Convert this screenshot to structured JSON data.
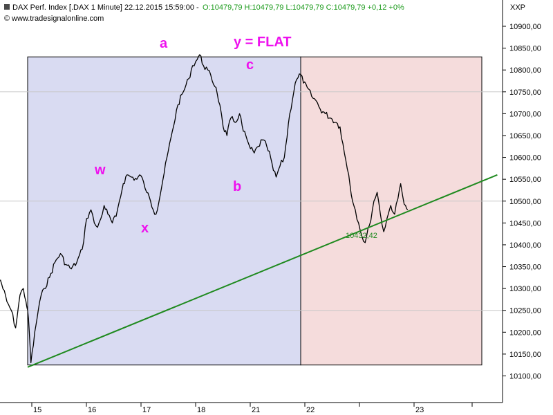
{
  "header": {
    "main": "DAX Perf. Index [.DAX  1 Minute] 22.12.2015 15:59:00 - ",
    "ohlc": "O:10479,79 H:10479,79 L:10479,79 C:10479,79 +0,12 +0%",
    "source": "www.tradesignalonline.com",
    "symbol": "XXP"
  },
  "colors": {
    "price": "#000000",
    "trendline": "#1f8a1f",
    "wave_label": "#ee11ee",
    "box_left": "#d9dbf2",
    "box_right": "#f5dcdc",
    "grid": "#c8c8c8"
  },
  "chart_data": {
    "type": "line",
    "title": "",
    "xlabel": "",
    "ylabel": "",
    "x_tick_labels": [
      "15",
      "16",
      "17",
      "18",
      "21",
      "22",
      "23"
    ],
    "y_tick_labels": [
      "10100,00",
      "10150,00",
      "10200,00",
      "10250,00",
      "10300,00",
      "10350,00",
      "10400,00",
      "10450,00",
      "10500,00",
      "10550,00",
      "10600,00",
      "10650,00",
      "10700,00",
      "10750,00",
      "10800,00",
      "10850,00",
      "10900,00"
    ],
    "ylim": [
      10065,
      10960
    ],
    "grid": "horizontal at 10250, 10500, 10750",
    "series": [
      {
        "values": [
          [
            14.5,
            10320
          ],
          [
            14.62,
            10270
          ],
          [
            14.7,
            10250
          ],
          [
            14.78,
            10210
          ],
          [
            14.86,
            10285
          ],
          [
            14.92,
            10300
          ],
          [
            14.97,
            10270
          ],
          [
            15.0,
            10250
          ],
          [
            15.03,
            10200
          ],
          [
            15.06,
            10130
          ],
          [
            15.15,
            10215
          ],
          [
            15.22,
            10270
          ],
          [
            15.3,
            10300
          ],
          [
            15.4,
            10325
          ],
          [
            15.5,
            10360
          ],
          [
            15.6,
            10380
          ],
          [
            15.7,
            10355
          ],
          [
            15.8,
            10345
          ],
          [
            15.9,
            10360
          ],
          [
            16.0,
            10390
          ],
          [
            16.08,
            10460
          ],
          [
            16.16,
            10480
          ],
          [
            16.22,
            10450
          ],
          [
            16.28,
            10440
          ],
          [
            16.34,
            10460
          ],
          [
            16.4,
            10490
          ],
          [
            16.47,
            10470
          ],
          [
            16.55,
            10450
          ],
          [
            16.62,
            10465
          ],
          [
            16.68,
            10500
          ],
          [
            16.75,
            10540
          ],
          [
            16.82,
            10560
          ],
          [
            16.9,
            10555
          ],
          [
            17.0,
            10550
          ],
          [
            17.05,
            10560
          ],
          [
            17.12,
            10545
          ],
          [
            17.18,
            10520
          ],
          [
            17.25,
            10500
          ],
          [
            17.3,
            10480
          ],
          [
            17.35,
            10470
          ],
          [
            17.65,
            10660
          ],
          [
            17.75,
            10720
          ],
          [
            17.85,
            10750
          ],
          [
            17.95,
            10780
          ],
          [
            18.02,
            10810
          ],
          [
            18.08,
            10820
          ],
          [
            18.15,
            10835
          ],
          [
            18.22,
            10810
          ],
          [
            18.3,
            10800
          ],
          [
            18.38,
            10775
          ],
          [
            18.45,
            10760
          ],
          [
            18.52,
            10720
          ],
          [
            18.58,
            10670
          ],
          [
            18.65,
            10650
          ],
          [
            18.72,
            10690
          ],
          [
            18.8,
            10680
          ],
          [
            18.88,
            10700
          ],
          [
            18.95,
            10660
          ],
          [
            19.02,
            10640
          ],
          [
            19.08,
            10620
          ],
          [
            19.15,
            10610
          ],
          [
            19.22,
            10625
          ],
          [
            19.3,
            10640
          ],
          [
            19.38,
            10625
          ],
          [
            19.45,
            10600
          ],
          [
            19.5,
            10570
          ],
          [
            19.55,
            10555
          ],
          [
            19.62,
            10580
          ],
          [
            19.7,
            10600
          ],
          [
            19.8,
            10700
          ],
          [
            19.9,
            10770
          ],
          [
            20.0,
            10790
          ],
          [
            20.0,
            10790
          ],
          [
            20.05,
            10770
          ],
          [
            20.12,
            10760
          ],
          [
            20.2,
            10740
          ],
          [
            20.28,
            10730
          ],
          [
            20.36,
            10710
          ],
          [
            20.45,
            10700
          ],
          [
            20.55,
            10690
          ],
          [
            20.65,
            10680
          ],
          [
            20.72,
            10670
          ],
          [
            20.8,
            10610
          ],
          [
            20.88,
            10560
          ],
          [
            20.95,
            10500
          ],
          [
            21.0,
            10480
          ],
          [
            21.06,
            10450
          ],
          [
            21.12,
            10420
          ],
          [
            21.18,
            10405
          ],
          [
            21.26,
            10445
          ],
          [
            21.34,
            10500
          ],
          [
            21.4,
            10520
          ],
          [
            21.46,
            10470
          ],
          [
            21.52,
            10430
          ],
          [
            21.58,
            10460
          ],
          [
            21.65,
            10490
          ],
          [
            21.72,
            10470
          ],
          [
            21.78,
            10505
          ],
          [
            21.83,
            10540
          ],
          [
            21.87,
            10510
          ],
          [
            21.92,
            10490
          ],
          [
            21.96,
            10480
          ]
        ]
      }
    ],
    "trendline": {
      "points": [
        [
          15.0,
          10120
        ],
        [
          23.6,
          10560
        ]
      ],
      "label": "10432,42"
    },
    "boxes": [
      {
        "x": [
          15.0,
          20.0
        ],
        "y": [
          10125,
          10830
        ],
        "color": "#d9dbf2"
      },
      {
        "x": [
          20.0,
          24.6
        ],
        "y": [
          10125,
          10830
        ],
        "color": "#f5dcdc"
      }
    ],
    "wave_labels": [
      "a",
      "w",
      "x",
      "b",
      "c",
      "y = FLAT"
    ]
  }
}
